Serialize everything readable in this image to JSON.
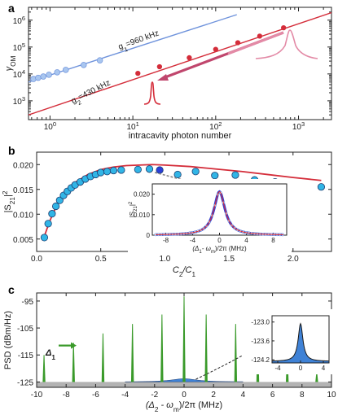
{
  "colors": {
    "red": "#d42d3a",
    "blue": "#6f93dc",
    "blue_fill": "#a9c6ef",
    "pink": "#e38aa6",
    "cyan": "#31b5e6",
    "green": "#3a9a2a",
    "gray_band": "#b3b3b3",
    "psd_fill": "#3f82d6"
  },
  "chart_data": [
    {
      "panel": "a",
      "type": "scatter",
      "xscale": "log",
      "yscale": "log",
      "xlim": [
        0.55,
        2500
      ],
      "ylim": [
        200,
        3000000
      ],
      "xlabel": "intracavity photon number",
      "ylabel": "γ",
      "ylabel_sub": "OM",
      "xticks": [
        {
          "v": 1,
          "b": "10",
          "e": "0"
        },
        {
          "v": 10,
          "b": "10",
          "e": "1"
        },
        {
          "v": 100,
          "b": "10",
          "e": "2"
        },
        {
          "v": 1000,
          "b": "10",
          "e": "3"
        }
      ],
      "yticks": [
        {
          "v": 1000,
          "b": "10",
          "e": "3"
        },
        {
          "v": 10000,
          "b": "10",
          "e": "4"
        },
        {
          "v": 100000,
          "b": "10",
          "e": "5"
        },
        {
          "v": 1000000,
          "b": "10",
          "e": "6"
        }
      ],
      "series": [
        {
          "color_key": "blue",
          "fill_key": "blue_fill",
          "line_label": "g1=960 kHz",
          "line_label_parts": [
            "g",
            "1",
            "=960 kHz"
          ],
          "points": [
            [
              0.63,
              6500
            ],
            [
              0.72,
              7200
            ],
            [
              0.83,
              8000
            ],
            [
              0.97,
              9300
            ],
            [
              1.22,
              11500
            ],
            [
              1.55,
              14200
            ],
            [
              2.55,
              21500
            ],
            [
              4.0,
              32000
            ]
          ],
          "fit": [
            [
              0.55,
              5000
            ],
            [
              180,
              1600000
            ]
          ]
        },
        {
          "color_key": "red",
          "fill_key": "red",
          "line_label": "g2=430 kHz",
          "line_label_parts": [
            "g",
            "2",
            "=430 kHz"
          ],
          "points": [
            [
              11.5,
              10500
            ],
            [
              21,
              18500
            ],
            [
              48,
              40000
            ],
            [
              100,
              82000
            ],
            [
              185,
              145000
            ],
            [
              340,
              255000
            ],
            [
              660,
              520000
            ]
          ],
          "fit": [
            [
              0.55,
              300
            ],
            [
              2500,
              1900000
            ]
          ]
        }
      ]
    },
    {
      "panel": "b",
      "type": "scatter",
      "xlim": [
        0,
        2.3
      ],
      "ylim": [
        0.0025,
        0.0225
      ],
      "xlabel_parts": [
        "C",
        "2",
        "/C",
        "1"
      ],
      "ylabel_parts": [
        "|S",
        "21",
        "|",
        "2"
      ],
      "xticks": [
        "0.0",
        "0.5",
        "1.0",
        "1.5",
        "2.0"
      ],
      "yticks": [
        "0.005",
        "0.010",
        "0.015",
        "0.020"
      ],
      "points": [
        [
          0.06,
          0.0053
        ],
        [
          0.09,
          0.0081
        ],
        [
          0.12,
          0.0101
        ],
        [
          0.15,
          0.0116
        ],
        [
          0.18,
          0.0128
        ],
        [
          0.21,
          0.0138
        ],
        [
          0.24,
          0.0146
        ],
        [
          0.27,
          0.0153
        ],
        [
          0.3,
          0.0159
        ],
        [
          0.34,
          0.0165
        ],
        [
          0.38,
          0.0171
        ],
        [
          0.42,
          0.0176
        ],
        [
          0.46,
          0.018
        ],
        [
          0.5,
          0.0184
        ],
        [
          0.55,
          0.0186
        ],
        [
          0.6,
          0.0188
        ],
        [
          0.66,
          0.0189
        ],
        [
          0.79,
          0.019
        ],
        [
          0.88,
          0.0191
        ],
        [
          0.96,
          0.0189
        ],
        [
          1.1,
          0.018
        ],
        [
          1.24,
          0.0186
        ],
        [
          1.39,
          0.0178
        ],
        [
          1.55,
          0.0179
        ],
        [
          1.7,
          0.0169
        ],
        [
          1.86,
          0.0165
        ],
        [
          2.22,
          0.0155
        ]
      ],
      "highlight": [
        0.96,
        0.0189
      ],
      "fit": [
        [
          0.05,
          0.0048
        ],
        [
          0.1,
          0.0085
        ],
        [
          0.15,
          0.0114
        ],
        [
          0.2,
          0.0136
        ],
        [
          0.25,
          0.0152
        ],
        [
          0.3,
          0.0164
        ],
        [
          0.4,
          0.018
        ],
        [
          0.5,
          0.019
        ],
        [
          0.6,
          0.0195
        ],
        [
          0.7,
          0.0198
        ],
        [
          0.8,
          0.0199
        ],
        [
          0.9,
          0.02
        ],
        [
          1.0,
          0.0199
        ],
        [
          1.2,
          0.0196
        ],
        [
          1.4,
          0.0191
        ],
        [
          1.6,
          0.0186
        ],
        [
          1.8,
          0.018
        ],
        [
          2.0,
          0.0174
        ],
        [
          2.22,
          0.0168
        ]
      ],
      "inset": {
        "type": "line",
        "xlim": [
          -10,
          10
        ],
        "ylim": [
          0,
          0.025
        ],
        "xticks": [
          "-8",
          "-4",
          "0",
          "4",
          "8"
        ],
        "yticks": [
          "0",
          "0.010",
          "0.020"
        ],
        "xlabel_parts": [
          "(Δ",
          "1",
          "- ω",
          "m",
          ")/2π (MHz)"
        ],
        "ylabel_parts": [
          "|S",
          "21",
          "|",
          "2"
        ],
        "peak": 0.0212,
        "halfwidth_mhz": 1.0
      }
    },
    {
      "panel": "c",
      "type": "line",
      "xlim": [
        -10,
        10
      ],
      "ylim": [
        -127,
        -92
      ],
      "xlabel_parts": [
        "(Δ",
        "2",
        " - ω",
        "m",
        ")/2π (MHz)"
      ],
      "ylabel": "PSD (dBm/Hz)",
      "xticks": [
        "-10",
        "-8",
        "-6",
        "-4",
        "-2",
        "0",
        "2",
        "4",
        "6",
        "8",
        "10"
      ],
      "yticks": [
        "-95",
        "-105",
        "-115",
        "-125"
      ],
      "noise_floor": -125,
      "arrow_label_parts": [
        "Δ",
        "1"
      ],
      "peaks": [
        [
          -9.5,
          -115
        ],
        [
          -7.5,
          -110.5
        ],
        [
          -5.5,
          -107
        ],
        [
          -3.5,
          -103.5
        ],
        [
          -1.5,
          -100
        ],
        [
          0,
          -93.3
        ],
        [
          1.5,
          -100
        ],
        [
          3.5,
          -103.5
        ],
        [
          5.0,
          -110
        ],
        [
          7.0,
          -115
        ],
        [
          9.0,
          -121.5
        ]
      ],
      "inset": {
        "xlim": [
          -5,
          5
        ],
        "ylim": [
          -124.3,
          -122.8
        ],
        "xticks": [
          "-4",
          "0",
          "4"
        ],
        "yticks": [
          "-123.0",
          "-123.6",
          "-124.2"
        ],
        "peak": -123.05,
        "base": -124.25
      }
    }
  ],
  "panel_labels": [
    "a",
    "b",
    "c"
  ]
}
